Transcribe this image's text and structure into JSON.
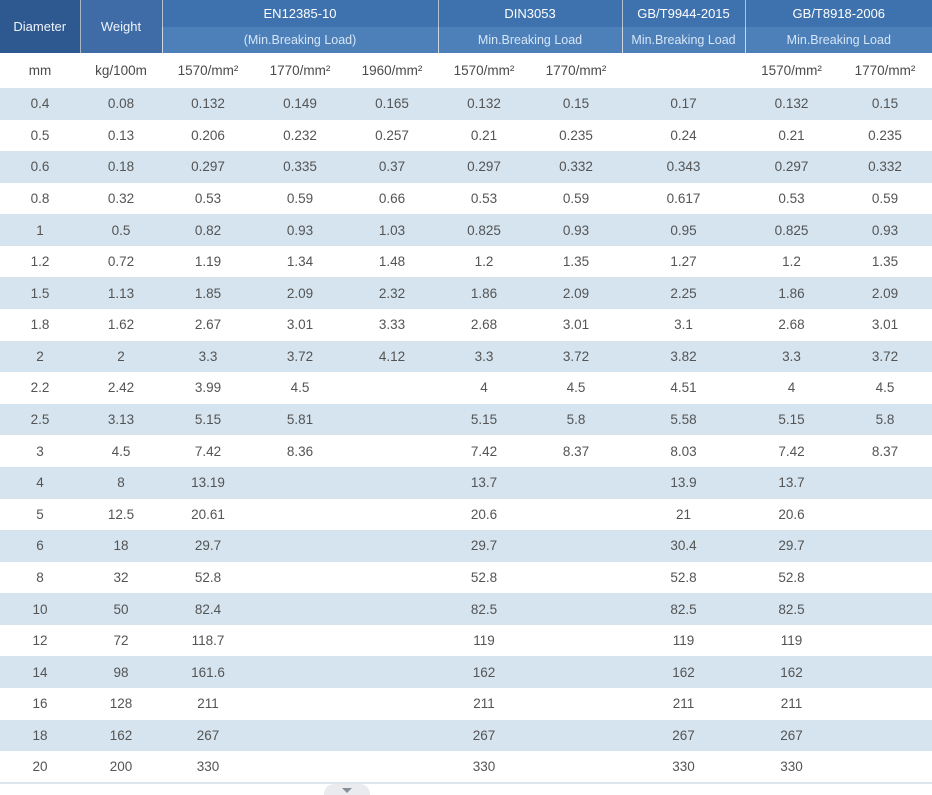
{
  "table": {
    "header": {
      "diameter_label": "Diameter",
      "weight_label": "Weight",
      "sections": [
        {
          "title": "EN12385-10",
          "subtitle": "(Min.Breaking Load)",
          "cols": 3
        },
        {
          "title": "DIN3053",
          "subtitle": "Min.Breaking Load",
          "cols": 2
        },
        {
          "title": "GB/T9944-2015",
          "subtitle": "Min.Breaking Load",
          "cols": 1
        },
        {
          "title": "GB/T8918-2006",
          "subtitle": "Min.Breaking Load",
          "cols": 2
        }
      ],
      "units_row": [
        "mm",
        "kg/100m",
        "1570/mm²",
        "1770/mm²",
        "1960/mm²",
        "1570/mm²",
        "1770/mm²",
        "",
        "1570/mm²",
        "1770/mm²"
      ]
    },
    "rows": [
      [
        "0.4",
        "0.08",
        "0.132",
        "0.149",
        "0.165",
        "0.132",
        "0.15",
        "0.17",
        "0.132",
        "0.15"
      ],
      [
        "0.5",
        "0.13",
        "0.206",
        "0.232",
        "0.257",
        "0.21",
        "0.235",
        "0.24",
        "0.21",
        "0.235"
      ],
      [
        "0.6",
        "0.18",
        "0.297",
        "0.335",
        "0.37",
        "0.297",
        "0.332",
        "0.343",
        "0.297",
        "0.332"
      ],
      [
        "0.8",
        "0.32",
        "0.53",
        "0.59",
        "0.66",
        "0.53",
        "0.59",
        "0.617",
        "0.53",
        "0.59"
      ],
      [
        "1",
        "0.5",
        "0.82",
        "0.93",
        "1.03",
        "0.825",
        "0.93",
        "0.95",
        "0.825",
        "0.93"
      ],
      [
        "1.2",
        "0.72",
        "1.19",
        "1.34",
        "1.48",
        "1.2",
        "1.35",
        "1.27",
        "1.2",
        "1.35"
      ],
      [
        "1.5",
        "1.13",
        "1.85",
        "2.09",
        "2.32",
        "1.86",
        "2.09",
        "2.25",
        "1.86",
        "2.09"
      ],
      [
        "1.8",
        "1.62",
        "2.67",
        "3.01",
        "3.33",
        "2.68",
        "3.01",
        "3.1",
        "2.68",
        "3.01"
      ],
      [
        "2",
        "2",
        "3.3",
        "3.72",
        "4.12",
        "3.3",
        "3.72",
        "3.82",
        "3.3",
        "3.72"
      ],
      [
        "2.2",
        "2.42",
        "3.99",
        "4.5",
        "",
        "4",
        "4.5",
        "4.51",
        "4",
        "4.5"
      ],
      [
        "2.5",
        "3.13",
        "5.15",
        "5.81",
        "",
        "5.15",
        "5.8",
        "5.58",
        "5.15",
        "5.8"
      ],
      [
        "3",
        "4.5",
        "7.42",
        "8.36",
        "",
        "7.42",
        "8.37",
        "8.03",
        "7.42",
        "8.37"
      ],
      [
        "4",
        "8",
        "13.19",
        "",
        "",
        "13.7",
        "",
        "13.9",
        "13.7",
        ""
      ],
      [
        "5",
        "12.5",
        "20.61",
        "",
        "",
        "20.6",
        "",
        "21",
        "20.6",
        ""
      ],
      [
        "6",
        "18",
        "29.7",
        "",
        "",
        "29.7",
        "",
        "30.4",
        "29.7",
        ""
      ],
      [
        "8",
        "32",
        "52.8",
        "",
        "",
        "52.8",
        "",
        "52.8",
        "52.8",
        ""
      ],
      [
        "10",
        "50",
        "82.4",
        "",
        "",
        "82.5",
        "",
        "82.5",
        "82.5",
        ""
      ],
      [
        "12",
        "72",
        "118.7",
        "",
        "",
        "119",
        "",
        "119",
        "119",
        ""
      ],
      [
        "14",
        "98",
        "161.6",
        "",
        "",
        "162",
        "",
        "162",
        "162",
        ""
      ],
      [
        "16",
        "128",
        "211",
        "",
        "",
        "211",
        "",
        "211",
        "211",
        ""
      ],
      [
        "18",
        "162",
        "267",
        "",
        "",
        "267",
        "",
        "267",
        "267",
        ""
      ],
      [
        "20",
        "200",
        "330",
        "",
        "",
        "330",
        "",
        "330",
        "330",
        ""
      ]
    ]
  },
  "footer": {
    "scroll_more": "chevron-down"
  },
  "colors": {
    "header_dark": "#2e5890",
    "header_medium": "#3f6ca7",
    "section_band_top": "#3e72ae",
    "section_band_bottom": "#4d7fb9",
    "row_stripe": "#d5e4ef",
    "body_text": "#545454",
    "subtitle_text": "#d5e6f8"
  }
}
